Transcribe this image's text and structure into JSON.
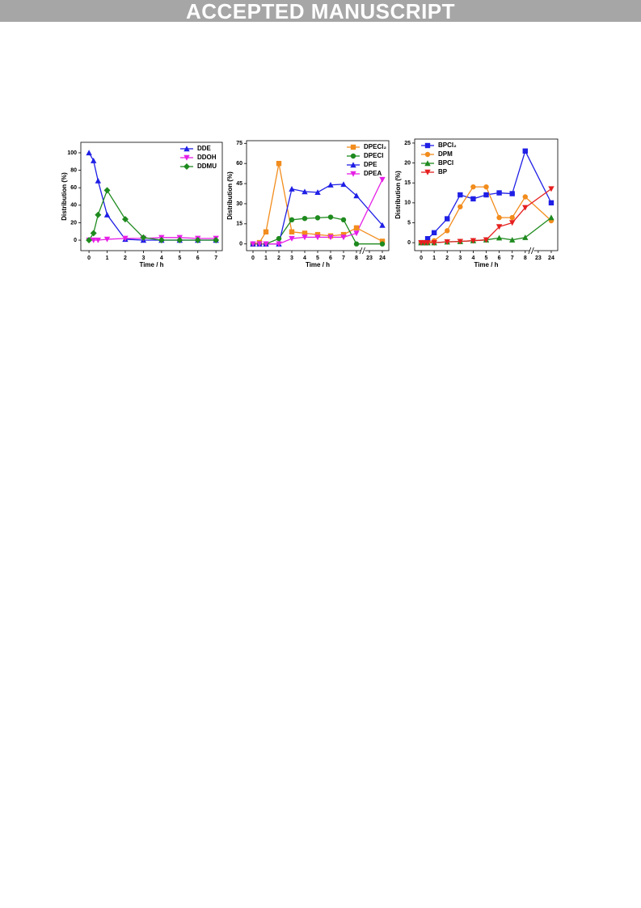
{
  "banner": "ACCEPTED MANUSCRIPT",
  "chart_data": [
    {
      "type": "line",
      "xlabel": "Time / h",
      "ylabel": "Distribution (%)",
      "x": [
        0,
        0.25,
        0.5,
        1,
        2,
        3,
        4,
        5,
        6,
        7
      ],
      "xlim": [
        -0.45,
        7.35
      ],
      "xticks": [
        0,
        1,
        2,
        3,
        4,
        5,
        6,
        7
      ],
      "ylim": [
        -12,
        112
      ],
      "yticks": [
        0,
        20,
        40,
        60,
        80,
        100
      ],
      "legend": "upper right",
      "axis_break": false,
      "series": [
        {
          "name": "DDE",
          "color": "#1f1fe6",
          "marker": "triangle",
          "values": [
            100,
            91,
            68,
            29,
            1,
            0,
            0,
            0,
            0,
            0
          ]
        },
        {
          "name": "DDOH",
          "color": "#e61fe6",
          "marker": "triangle-down",
          "values": [
            0,
            0,
            0,
            1,
            2,
            2,
            3,
            3,
            2,
            2
          ]
        },
        {
          "name": "DDMU",
          "color": "#1e8a1e",
          "marker": "diamond",
          "values": [
            0,
            8,
            29,
            57,
            24,
            3,
            0,
            0,
            0,
            0
          ]
        }
      ]
    },
    {
      "type": "line",
      "xlabel": "Time / h",
      "ylabel": "Distribution (%)",
      "x": [
        0,
        0.5,
        1,
        2,
        3,
        4,
        5,
        6,
        7,
        8,
        24
      ],
      "xlim": [
        -0.5,
        24.5
      ],
      "xticks": [
        0,
        1,
        2,
        3,
        4,
        5,
        6,
        7,
        8,
        23,
        24
      ],
      "ylim": [
        -5,
        77
      ],
      "yticks": [
        0,
        15,
        30,
        45,
        60,
        75
      ],
      "legend": "upper right",
      "axis_break": true,
      "series": [
        {
          "name": "DPECl₂",
          "color": "#f28c1c",
          "marker": "square",
          "values": [
            0,
            1,
            9,
            60,
            9,
            8,
            7,
            6,
            7,
            12,
            2
          ]
        },
        {
          "name": "DPECl",
          "color": "#1e8a1e",
          "marker": "circle",
          "values": [
            0,
            0,
            0,
            4,
            18,
            19,
            19.5,
            20,
            18,
            0,
            0
          ]
        },
        {
          "name": "DPE",
          "color": "#1f1fe6",
          "marker": "triangle",
          "values": [
            0,
            0,
            0,
            0,
            41,
            39,
            38.5,
            44,
            44.5,
            36,
            14
          ]
        },
        {
          "name": "DPEA",
          "color": "#e61fe6",
          "marker": "triangle-down",
          "values": [
            0,
            0,
            0,
            0,
            4,
            5,
            5,
            5,
            5,
            8,
            48
          ]
        }
      ]
    },
    {
      "type": "line",
      "xlabel": "Time / h",
      "ylabel": "Distribution (%)",
      "x": [
        0,
        0.25,
        0.5,
        1,
        2,
        3,
        4,
        5,
        6,
        7,
        8,
        24
      ],
      "xlim": [
        -0.45,
        24.45
      ],
      "xticks": [
        0,
        1,
        2,
        3,
        4,
        5,
        6,
        7,
        8,
        23,
        24
      ],
      "ylim": [
        -2,
        26
      ],
      "yticks": [
        0,
        5,
        10,
        15,
        20,
        25
      ],
      "legend": "upper left",
      "axis_break": true,
      "series": [
        {
          "name": "BPCl₂",
          "color": "#1f1fe6",
          "marker": "square",
          "values": [
            0,
            0,
            1,
            2.5,
            6,
            12,
            11,
            12,
            12.5,
            12.3,
            23,
            10
          ]
        },
        {
          "name": "DPM",
          "color": "#f28c1c",
          "marker": "circle",
          "values": [
            0,
            0,
            0,
            0.5,
            3,
            9,
            14,
            14,
            6.3,
            6.3,
            11.5,
            5.5
          ]
        },
        {
          "name": "BPCl",
          "color": "#1e8a1e",
          "marker": "triangle",
          "values": [
            0,
            0,
            0,
            0,
            0.2,
            0.3,
            0.5,
            0.7,
            1.2,
            0.7,
            1.3,
            6.3
          ]
        },
        {
          "name": "BP",
          "color": "#e61f1f",
          "marker": "triangle-down",
          "values": [
            0,
            0,
            0,
            0,
            0.2,
            0.3,
            0.5,
            0.7,
            4,
            5,
            8.8,
            13.5
          ]
        }
      ]
    }
  ]
}
